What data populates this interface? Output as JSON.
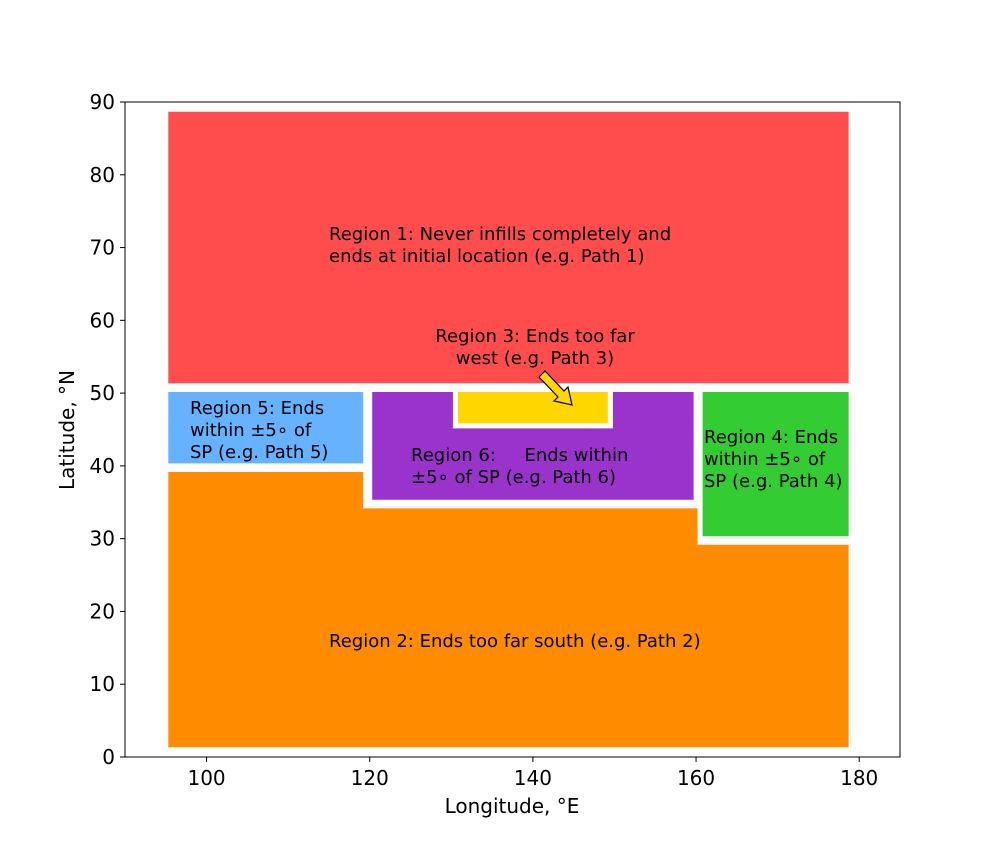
{
  "chart_data": {
    "type": "area",
    "xlabel": "Longitude, °E",
    "ylabel": "Latitude, °N",
    "xlim": [
      90,
      185
    ],
    "ylim": [
      0,
      90
    ],
    "xticks": [
      100,
      120,
      140,
      160,
      180
    ],
    "yticks": [
      0,
      10,
      20,
      30,
      40,
      50,
      60,
      70,
      80,
      90
    ],
    "grid": false,
    "regions": [
      {
        "name": "Region 1",
        "color": "#ff4c4c",
        "polygon": [
          [
            95,
            51
          ],
          [
            179,
            51
          ],
          [
            179,
            89
          ],
          [
            95,
            89
          ]
        ],
        "label_lines": [
          "Region 1: Never infills completely and",
          "ends at initial location (e.g. Path 1)"
        ]
      },
      {
        "name": "Region 2",
        "color": "#ff8c00",
        "polygon": [
          [
            95,
            1
          ],
          [
            179,
            1
          ],
          [
            179,
            29.5
          ],
          [
            160.5,
            29.5
          ],
          [
            160.5,
            34.5
          ],
          [
            119.5,
            34.5
          ],
          [
            119.5,
            39.5
          ],
          [
            95,
            39.5
          ]
        ],
        "label_lines": [
          "Region 2: Ends too far south (e.g. Path 2)"
        ]
      },
      {
        "name": "Region 3",
        "color": "#ffd700",
        "polygon": [
          [
            130.5,
            45.5
          ],
          [
            149.5,
            45.5
          ],
          [
            149.5,
            50.5
          ],
          [
            130.5,
            50.5
          ]
        ],
        "label_lines": [
          "Region 3: Ends too far",
          "west (e.g. Path 3)"
        ]
      },
      {
        "name": "Region 4",
        "color": "#33cc33",
        "polygon": [
          [
            160.5,
            30
          ],
          [
            179,
            30
          ],
          [
            179,
            50.5
          ],
          [
            160.5,
            50.5
          ]
        ],
        "label_lines": [
          "Region 4: Ends",
          "within ±5∘ of",
          "SP (e.g. Path 4)"
        ]
      },
      {
        "name": "Region 5",
        "color": "#66b2ff",
        "polygon": [
          [
            95,
            40
          ],
          [
            119.5,
            40
          ],
          [
            119.5,
            50.5
          ],
          [
            95,
            50.5
          ]
        ],
        "label_lines": [
          "Region 5: Ends",
          "within ±5∘ of",
          "SP (e.g. Path 5)"
        ]
      },
      {
        "name": "Region 6",
        "color": "#9933cc",
        "polygon": [
          [
            120,
            35
          ],
          [
            160,
            35
          ],
          [
            160,
            50.5
          ],
          [
            149.5,
            50.5
          ],
          [
            149.5,
            45.5
          ],
          [
            130.5,
            45.5
          ],
          [
            130.5,
            50.5
          ],
          [
            120,
            50.5
          ]
        ],
        "label_lines": [
          "Region 6:     Ends within",
          "±5∘ of SP (e.g. Path 6)"
        ]
      }
    ],
    "annotations": [
      {
        "target": "Region 3",
        "arrow": true
      }
    ]
  }
}
